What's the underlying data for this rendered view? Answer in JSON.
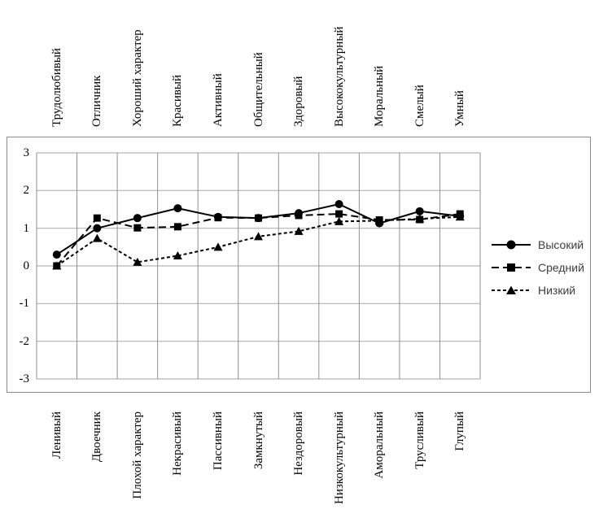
{
  "chart_data": {
    "type": "line",
    "title": "",
    "top_axis_categories": [
      "Трудолюбивый",
      "Отличник",
      "Хороший характер",
      "Красивый",
      "Активный",
      "Общительный",
      "Здоровый",
      "Высококультурный",
      "Моральный",
      "Смелый",
      "Умный"
    ],
    "bottom_axis_categories": [
      "Ленивый",
      "Двоечник",
      "Плохой характер",
      "Некрасивый",
      "Пассивный",
      "Замкнутый",
      "Нездоровый",
      "Низкокультурный",
      "Аморальный",
      "Трусливый",
      "Глупый"
    ],
    "y_tick_labels": [
      "3",
      "2",
      "1",
      "0",
      "-1",
      "-2",
      "-3"
    ],
    "ylim": [
      -3,
      3
    ],
    "grid": true,
    "legend_position": "right",
    "series": [
      {
        "name": "Высокий",
        "marker": "circle",
        "line": "solid",
        "values": [
          0.3,
          1.0,
          1.27,
          1.53,
          1.3,
          1.27,
          1.4,
          1.64,
          1.13,
          1.45,
          1.32
        ]
      },
      {
        "name": "Средний",
        "marker": "square",
        "line": "dash",
        "values": [
          0.0,
          1.27,
          1.01,
          1.04,
          1.28,
          1.27,
          1.34,
          1.38,
          1.22,
          1.23,
          1.38
        ]
      },
      {
        "name": "Низкий",
        "marker": "triangle",
        "line": "shortdash",
        "values": [
          0.0,
          0.73,
          0.1,
          0.27,
          0.5,
          0.78,
          0.92,
          1.18,
          1.2,
          1.25,
          1.3
        ]
      }
    ],
    "colors": {
      "series_line": "#000000",
      "grid_horizontal": "#b3b3b3",
      "grid_vertical": "#8f8f8f",
      "frame_border": "#8a8a8a",
      "axis_text": "#000000",
      "legend_text": "#3c3c3c"
    }
  }
}
